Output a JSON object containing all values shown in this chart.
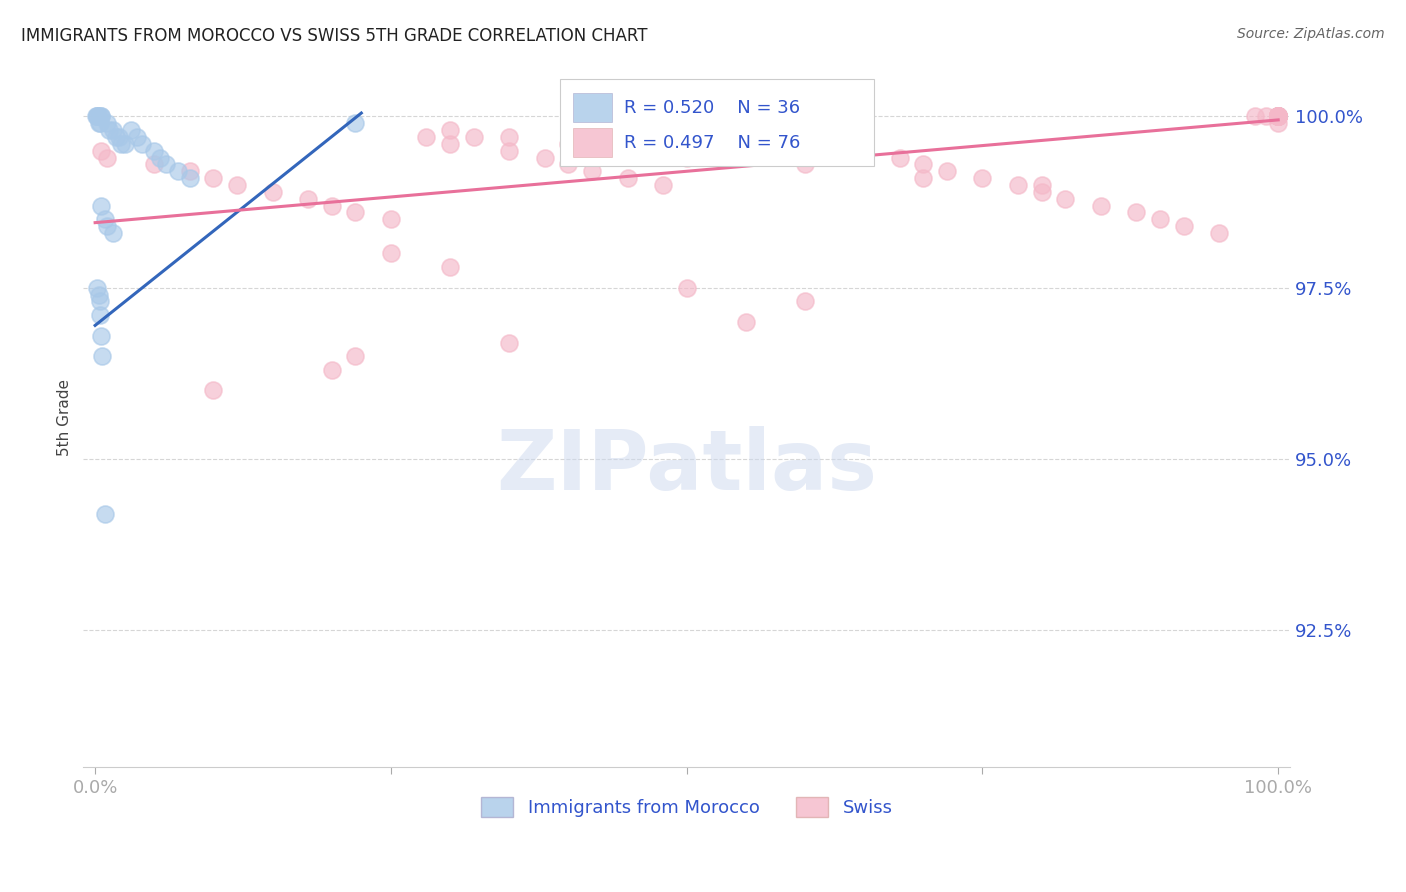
{
  "title": "IMMIGRANTS FROM MOROCCO VS SWISS 5TH GRADE CORRELATION CHART",
  "source": "Source: ZipAtlas.com",
  "ylabel": "5th Grade",
  "y_tick_labels": [
    "92.5%",
    "95.0%",
    "97.5%",
    "100.0%"
  ],
  "y_tick_values": [
    0.925,
    0.95,
    0.975,
    1.0
  ],
  "x_tick_values": [
    0.0,
    0.25,
    0.5,
    0.75,
    1.0
  ],
  "x_tick_labels": [
    "0.0%",
    "",
    "",
    "",
    "100.0%"
  ],
  "legend_r_blue": "R = 0.520",
  "legend_n_blue": "N = 36",
  "legend_r_pink": "R = 0.497",
  "legend_n_pink": "N = 76",
  "bottom_legend": [
    "Immigrants from Morocco",
    "Swiss"
  ],
  "watermark": "ZIPatlas",
  "blue_color": "#a8c8e8",
  "pink_color": "#f4b8c8",
  "blue_line_color": "#3366bb",
  "pink_line_color": "#e8709a",
  "title_color": "#222222",
  "axis_label_color": "#3355cc",
  "background_color": "#ffffff",
  "ylim_min": 0.905,
  "ylim_max": 1.007,
  "xlim_min": -0.01,
  "xlim_max": 1.01,
  "blue_trend_x0": 0.0,
  "blue_trend_y0": 0.9695,
  "blue_trend_x1": 0.225,
  "blue_trend_y1": 1.0005,
  "pink_trend_x0": 0.0,
  "pink_trend_y0": 0.9845,
  "pink_trend_x1": 1.0,
  "pink_trend_y1": 0.9995
}
